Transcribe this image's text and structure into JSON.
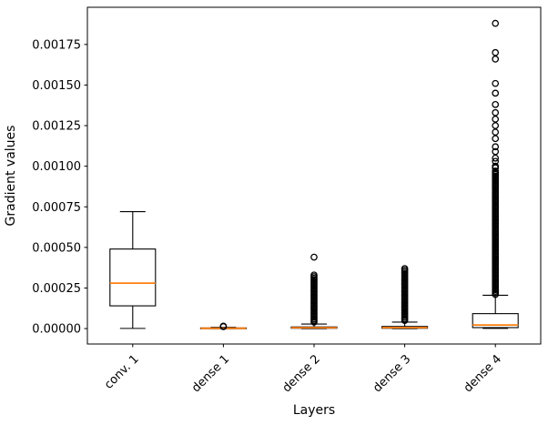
{
  "figure": {
    "background": "#ffffff"
  },
  "chart_data": {
    "type": "boxplot",
    "title": "",
    "xlabel": "Layers",
    "ylabel": "Gradient values",
    "categories": [
      "conv. 1",
      "dense 1",
      "dense 2",
      "dense 3",
      "dense 4"
    ],
    "ylim": [
      -9.5e-05,
      0.001979
    ],
    "yticks": [
      0.0,
      0.00025,
      0.0005,
      0.00075,
      0.001,
      0.00125,
      0.0015,
      0.00175
    ],
    "ytick_labels": [
      "0.00000",
      "0.00025",
      "0.00050",
      "0.00075",
      "0.00100",
      "0.00125",
      "0.00150",
      "0.00175"
    ],
    "grid": false,
    "legend": null,
    "colors": {
      "median": "#ff7f0e",
      "box": "#000000",
      "whisker": "#000000",
      "flier": "#000000",
      "background": "#ffffff"
    },
    "boxes": [
      {
        "label": "conv. 1",
        "whislo": 1e-06,
        "q1": 0.00014,
        "med": 0.00028,
        "q3": 0.00049,
        "whishi": 0.00072,
        "fliers": []
      },
      {
        "label": "dense 1",
        "whislo": 0.0,
        "q1": 1e-06,
        "med": 2e-06,
        "q3": 4e-06,
        "whishi": 8e-06,
        "fliers": [
          1.2e-05,
          1.5e-05
        ]
      },
      {
        "label": "dense 2",
        "whislo": 0.0,
        "q1": 2e-06,
        "med": 5e-06,
        "q3": 1e-05,
        "whishi": 2.8e-05,
        "fliers": [
          4e-05,
          5e-05,
          6e-05,
          7e-05,
          8e-05,
          9e-05,
          0.0001,
          0.00011,
          0.00012,
          0.00013,
          0.00014,
          0.00015,
          0.00016,
          0.00017,
          0.00018,
          0.00019,
          0.0002,
          0.00021,
          0.00022,
          0.00023,
          0.00024,
          0.00025,
          0.00026,
          0.00027,
          0.00028,
          0.00029,
          0.0003,
          0.00031,
          0.00032,
          0.00033,
          0.00044
        ]
      },
      {
        "label": "dense 3",
        "whislo": 0.0,
        "q1": 2e-06,
        "med": 6e-06,
        "q3": 1.3e-05,
        "whishi": 4e-05,
        "fliers": [
          5e-05,
          6e-05,
          7e-05,
          8e-05,
          9e-05,
          0.0001,
          0.00011,
          0.00012,
          0.00013,
          0.00014,
          0.00015,
          0.00016,
          0.00017,
          0.00018,
          0.00019,
          0.0002,
          0.00021,
          0.00022,
          0.00023,
          0.00024,
          0.00025,
          0.00026,
          0.00027,
          0.00028,
          0.00029,
          0.0003,
          0.00031,
          0.00032,
          0.00033,
          0.00034,
          0.00035,
          0.00036,
          0.00037
        ]
      },
      {
        "label": "dense 4",
        "whislo": 1e-06,
        "q1": 6e-06,
        "med": 2.2e-05,
        "q3": 9.2e-05,
        "whishi": 0.000205,
        "fliers": [
          0.00021,
          0.00022,
          0.00023,
          0.00024,
          0.00025,
          0.00026,
          0.00027,
          0.00028,
          0.00029,
          0.0003,
          0.00031,
          0.00032,
          0.00033,
          0.00034,
          0.00035,
          0.00036,
          0.00037,
          0.00038,
          0.00039,
          0.0004,
          0.00041,
          0.00042,
          0.00043,
          0.00044,
          0.00045,
          0.00046,
          0.00047,
          0.00048,
          0.00049,
          0.0005,
          0.00051,
          0.00052,
          0.00053,
          0.00054,
          0.00055,
          0.00056,
          0.00057,
          0.00058,
          0.00059,
          0.0006,
          0.00061,
          0.00062,
          0.00063,
          0.00064,
          0.00065,
          0.00066,
          0.00067,
          0.00068,
          0.00069,
          0.0007,
          0.00071,
          0.00072,
          0.00073,
          0.00074,
          0.00075,
          0.00076,
          0.00077,
          0.00078,
          0.00079,
          0.0008,
          0.00081,
          0.00082,
          0.00083,
          0.00084,
          0.00085,
          0.00086,
          0.00087,
          0.00088,
          0.00089,
          0.0009,
          0.00091,
          0.00092,
          0.00093,
          0.00094,
          0.00095,
          0.00096,
          0.00097,
          0.00099,
          0.001,
          0.00103,
          0.00105,
          0.00109,
          0.00112,
          0.00117,
          0.00121,
          0.00125,
          0.00129,
          0.00133,
          0.00138,
          0.00145,
          0.00151,
          0.00166,
          0.0017,
          0.00188
        ]
      }
    ]
  }
}
